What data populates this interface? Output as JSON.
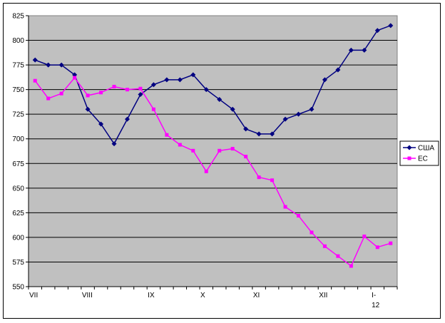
{
  "chart_data": {
    "type": "line",
    "title": "",
    "xlabel": "",
    "ylabel": "",
    "ylim": [
      550,
      825
    ],
    "yticks": [
      550,
      575,
      600,
      625,
      650,
      675,
      700,
      725,
      750,
      775,
      800,
      825
    ],
    "grid": true,
    "plot_background": "#C0C0C0",
    "legend_position": "right",
    "x_count": 28,
    "x_tick_labels": [
      {
        "index": 0,
        "text": "VII"
      },
      {
        "index": 4,
        "text": "VIII"
      },
      {
        "index": 9,
        "text": "IX"
      },
      {
        "index": 13,
        "text": "X"
      },
      {
        "index": 17,
        "text": "XI"
      },
      {
        "index": 22,
        "text": "XII"
      },
      {
        "index": 26,
        "text": "I-",
        "sub": "12"
      }
    ],
    "series": [
      {
        "name": "США",
        "color": "#000080",
        "marker": "diamond",
        "values": [
          780,
          775,
          775,
          765,
          730,
          715,
          695,
          720,
          745,
          755,
          760,
          760,
          765,
          750,
          740,
          730,
          710,
          705,
          705,
          720,
          725,
          730,
          760,
          770,
          790,
          790,
          810,
          815
        ]
      },
      {
        "name": "ЕС",
        "color": "#FF00FF",
        "marker": "square",
        "values": [
          759,
          741,
          746,
          762,
          744,
          747,
          753,
          750,
          751,
          730,
          704,
          694,
          688,
          667,
          688,
          690,
          682,
          661,
          658,
          631,
          622,
          605,
          591,
          581,
          571,
          601,
          590,
          594
        ]
      }
    ]
  }
}
